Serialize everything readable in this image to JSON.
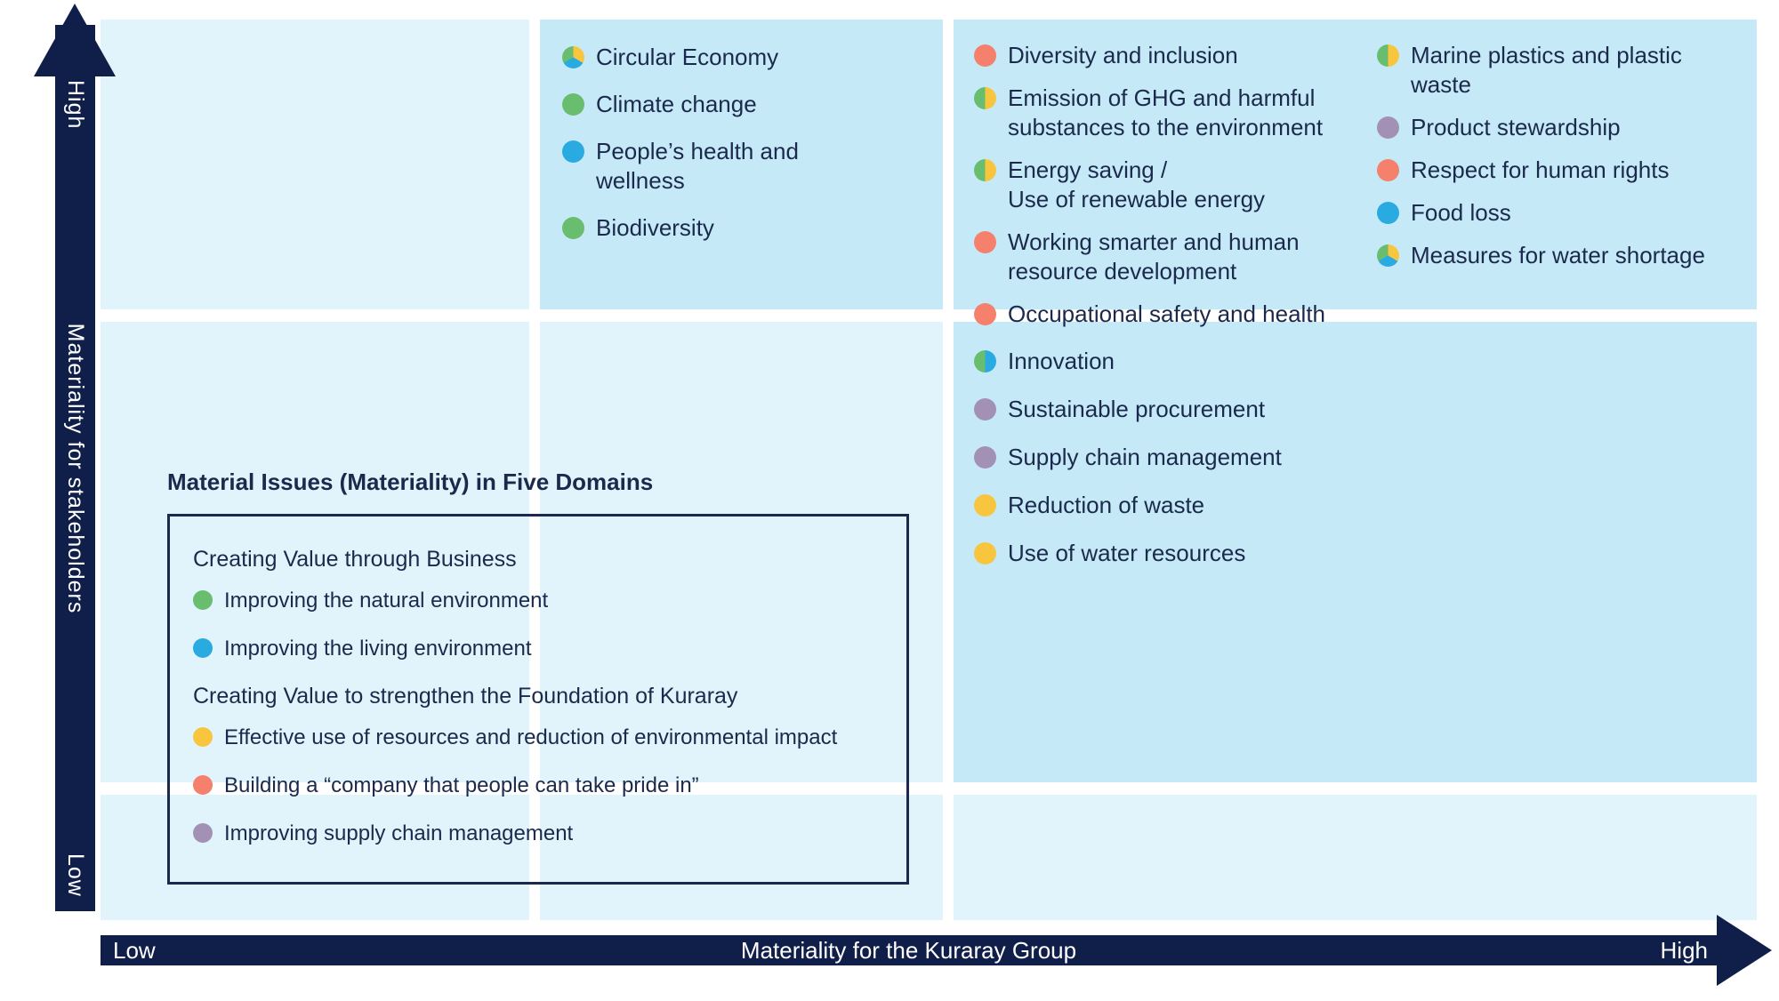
{
  "colors": {
    "axis_navy": "#101f4a",
    "text_navy": "#1b2a4c",
    "cell_pale_blue": "#e1f3fb",
    "cell_highlight_blue": "#c5e9f7",
    "marker_green": "#69bd6e",
    "marker_blue": "#29abe2",
    "marker_yellow": "#f8c63e",
    "marker_salmon": "#f5806c",
    "marker_purple": "#a391b5"
  },
  "y_axis": {
    "top_label": "High",
    "title": "Materiality for stakeholders",
    "bottom_label": "Low"
  },
  "x_axis": {
    "left_label": "Low",
    "title": "Materiality for the Kuraray Group",
    "right_label": "High"
  },
  "quadrants": {
    "top_center": {
      "items": [
        {
          "label": "Circular Economy",
          "marker": "tri"
        },
        {
          "label": "Climate change",
          "marker": "green"
        },
        {
          "label": "People’s health and\nwellness",
          "marker": "blue"
        },
        {
          "label": "Biodiversity",
          "marker": "green"
        }
      ]
    },
    "top_right_col1": {
      "items": [
        {
          "label": "Diversity and inclusion",
          "marker": "salmon"
        },
        {
          "label": "Emission of GHG and harmful\nsubstances to the environment",
          "marker": "green-yellow"
        },
        {
          "label": "Energy saving /\nUse of renewable energy",
          "marker": "green-yellow"
        },
        {
          "label": "Working smarter and human\nresource development",
          "marker": "salmon"
        },
        {
          "label": "Occupational safety and health",
          "marker": "salmon"
        }
      ]
    },
    "top_right_col2": {
      "items": [
        {
          "label": "Marine plastics and plastic\nwaste",
          "marker": "green-yellow"
        },
        {
          "label": "Product stewardship",
          "marker": "purple"
        },
        {
          "label": "Respect for human rights",
          "marker": "salmon"
        },
        {
          "label": "Food loss",
          "marker": "blue"
        },
        {
          "label": "Measures for water shortage",
          "marker": "tri"
        }
      ]
    },
    "middle_right": {
      "items": [
        {
          "label": "Innovation",
          "marker": "green-blue"
        },
        {
          "label": "Sustainable procurement",
          "marker": "purple"
        },
        {
          "label": "Supply chain management",
          "marker": "purple"
        },
        {
          "label": "Reduction of waste",
          "marker": "yellow"
        },
        {
          "label": "Use of water resources",
          "marker": "yellow"
        }
      ]
    }
  },
  "legend": {
    "title": "Material Issues (Materiality) in Five Domains",
    "groups": [
      {
        "heading": "Creating Value through Business",
        "items": [
          {
            "label": "Improving the natural environment",
            "marker": "green"
          },
          {
            "label": "Improving the living environment",
            "marker": "blue"
          }
        ]
      },
      {
        "heading": "Creating Value to strengthen the Foundation of Kuraray",
        "items": [
          {
            "label": "Effective use of resources and reduction of environmental impact",
            "marker": "yellow"
          },
          {
            "label": "Building a “company that people can take pride in”",
            "marker": "salmon"
          },
          {
            "label": "Improving supply chain management",
            "marker": "purple"
          }
        ]
      }
    ]
  }
}
